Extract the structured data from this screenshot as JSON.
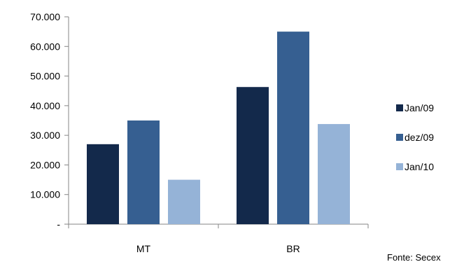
{
  "chart_data": {
    "type": "bar",
    "categories": [
      "MT",
      "BR"
    ],
    "series": [
      {
        "name": "Jan/09",
        "color": "#13294b",
        "values": [
          27000,
          46300
        ]
      },
      {
        "name": "dez/09",
        "color": "#365f91",
        "values": [
          35000,
          65000
        ]
      },
      {
        "name": "Jan/10",
        "color": "#95b3d7",
        "values": [
          15000,
          33800
        ]
      }
    ],
    "ylim": [
      0,
      70000
    ],
    "yticks": [
      {
        "value": 0,
        "label": "-"
      },
      {
        "value": 10000,
        "label": "10.000"
      },
      {
        "value": 20000,
        "label": "20.000"
      },
      {
        "value": 30000,
        "label": "30.000"
      },
      {
        "value": 40000,
        "label": "40.000"
      },
      {
        "value": 50000,
        "label": "50.000"
      },
      {
        "value": 60000,
        "label": "60.000"
      },
      {
        "value": 70000,
        "label": "70.000"
      }
    ],
    "grid": false,
    "legend_position": "right",
    "source_note": "Fonte: Secex"
  }
}
